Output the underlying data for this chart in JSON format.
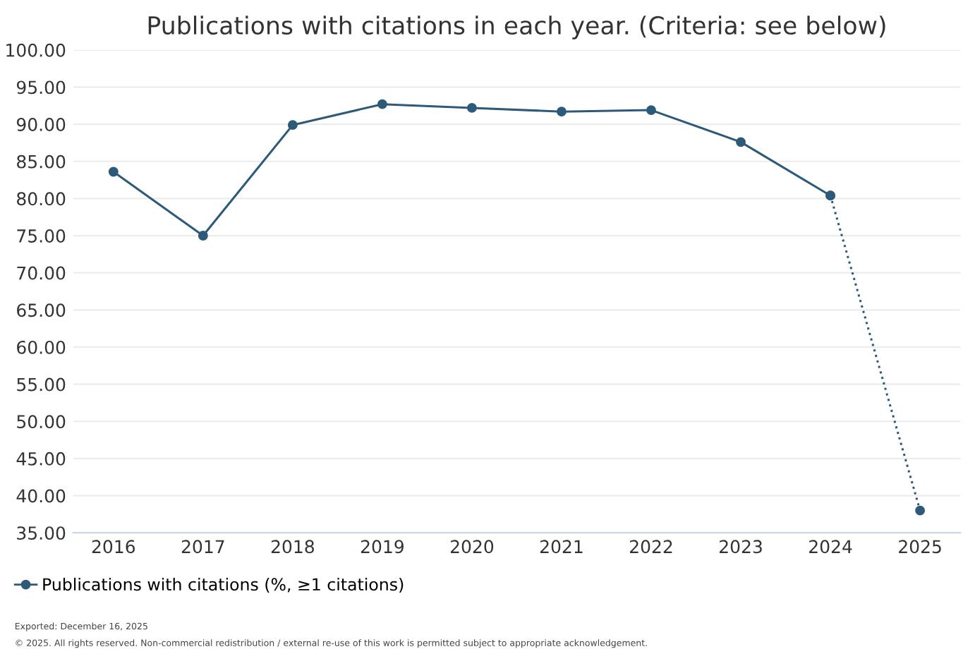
{
  "chart_data": {
    "type": "line",
    "title": "Publications with citations in each year. (Criteria: see below)",
    "categories": [
      "2016",
      "2017",
      "2018",
      "2019",
      "2020",
      "2021",
      "2022",
      "2023",
      "2024",
      "2025"
    ],
    "series": [
      {
        "name": "Publications with citations (%, ≥1 citations)",
        "color": "#2e5a7a",
        "marker": "circle",
        "line_style": "solid",
        "values": [
          83.6,
          75.0,
          89.9,
          92.7,
          92.2,
          91.7,
          91.9,
          87.6,
          80.4,
          null
        ]
      },
      {
        "color": "#2e5a7a",
        "marker": "circle",
        "line_style": "dotted",
        "values": [
          null,
          null,
          null,
          null,
          null,
          null,
          null,
          null,
          80.4,
          38.0
        ]
      }
    ],
    "ylim": [
      35,
      100
    ],
    "yticks": [
      {
        "value": 35,
        "label": "35.00"
      },
      {
        "value": 40,
        "label": "40.00"
      },
      {
        "value": 45,
        "label": "45.00"
      },
      {
        "value": 50,
        "label": "50.00"
      },
      {
        "value": 55,
        "label": "55.00"
      },
      {
        "value": 60,
        "label": "60.00"
      },
      {
        "value": 65,
        "label": "65.00"
      },
      {
        "value": 70,
        "label": "70.00"
      },
      {
        "value": 75,
        "label": "75.00"
      },
      {
        "value": 80,
        "label": "80.00"
      },
      {
        "value": 85,
        "label": "85.00"
      },
      {
        "value": 90,
        "label": "90.00"
      },
      {
        "value": 95,
        "label": "95.00"
      },
      {
        "value": 100,
        "label": "100.00"
      }
    ],
    "grid": "y",
    "legend": "bottom left",
    "annotations": [
      "Exported: December 16, 2025",
      "© 2025. All rights reserved. Non-commercial redistribution / external re-use of this work is permitted subject to appropriate acknowledgement."
    ]
  }
}
